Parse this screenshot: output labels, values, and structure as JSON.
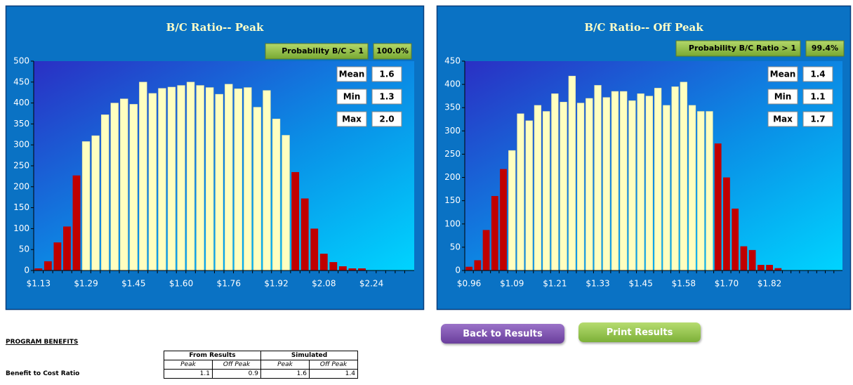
{
  "chart_data": [
    {
      "type": "bar",
      "title": "B/C Ratio-- Peak",
      "probability_label": "Probability B/C > 1",
      "probability_value": "100.0%",
      "stats": [
        {
          "label": "Mean",
          "value": "1.6"
        },
        {
          "label": "Min",
          "value": "1.3"
        },
        {
          "label": "Max",
          "value": "2.0"
        }
      ],
      "categories": [
        "$1.13",
        null,
        null,
        null,
        null,
        "$1.29",
        null,
        null,
        null,
        null,
        "$1.45",
        null,
        null,
        null,
        null,
        "$1.60",
        null,
        null,
        null,
        null,
        "$1.76",
        null,
        null,
        null,
        null,
        "$1.92",
        null,
        null,
        null,
        null,
        "$2.08",
        null,
        null,
        null,
        null,
        "$2.24",
        null,
        null,
        null,
        null
      ],
      "values": [
        5,
        22,
        67,
        105,
        227,
        308,
        322,
        372,
        400,
        410,
        397,
        450,
        423,
        435,
        438,
        442,
        450,
        442,
        437,
        421,
        445,
        434,
        437,
        390,
        430,
        362,
        323,
        235,
        172,
        100,
        40,
        20,
        10,
        5,
        5,
        0,
        0,
        0,
        0,
        0
      ],
      "colors": [
        "#c00000",
        "#c00000",
        "#c00000",
        "#c00000",
        "#c00000",
        "#ffffc0",
        "#ffffc0",
        "#ffffc0",
        "#ffffc0",
        "#ffffc0",
        "#ffffc0",
        "#ffffc0",
        "#ffffc0",
        "#ffffc0",
        "#ffffc0",
        "#ffffc0",
        "#ffffc0",
        "#ffffc0",
        "#ffffc0",
        "#ffffc0",
        "#ffffc0",
        "#ffffc0",
        "#ffffc0",
        "#ffffc0",
        "#ffffc0",
        "#ffffc0",
        "#ffffc0",
        "#c00000",
        "#c00000",
        "#c00000",
        "#c00000",
        "#c00000",
        "#c00000",
        "#c00000",
        "#c00000",
        "#c00000",
        "#c00000",
        "#c00000",
        "#c00000",
        "#c00000"
      ],
      "ylim": [
        0,
        500
      ],
      "yticks": [
        0,
        50,
        100,
        150,
        200,
        250,
        300,
        350,
        400,
        450,
        500
      ]
    },
    {
      "type": "bar",
      "title": "B/C Ratio-- Off Peak",
      "probability_label": "Probability B/C Ratio > 1",
      "probability_value": "99.4%",
      "stats": [
        {
          "label": "Mean",
          "value": "1.4"
        },
        {
          "label": "Min",
          "value": "1.1"
        },
        {
          "label": "Max",
          "value": "1.7"
        }
      ],
      "categories": [
        "$0.96",
        null,
        null,
        null,
        null,
        "$1.09",
        null,
        null,
        null,
        null,
        "$1.21",
        null,
        null,
        null,
        null,
        "$1.33",
        null,
        null,
        null,
        null,
        "$1.45",
        null,
        null,
        null,
        null,
        "$1.58",
        null,
        null,
        null,
        null,
        "$1.70",
        null,
        null,
        null,
        null,
        "$1.82",
        null,
        null,
        null,
        null,
        null,
        null,
        null,
        null
      ],
      "values": [
        8,
        22,
        87,
        160,
        218,
        258,
        337,
        322,
        355,
        342,
        380,
        362,
        418,
        360,
        370,
        398,
        372,
        385,
        385,
        365,
        380,
        375,
        392,
        355,
        395,
        405,
        355,
        342,
        342,
        273,
        200,
        133,
        52,
        44,
        12,
        12,
        5,
        0,
        0,
        0,
        0,
        0,
        0,
        0
      ],
      "colors": [
        "#c00000",
        "#c00000",
        "#c00000",
        "#c00000",
        "#c00000",
        "#ffffc0",
        "#ffffc0",
        "#ffffc0",
        "#ffffc0",
        "#ffffc0",
        "#ffffc0",
        "#ffffc0",
        "#ffffc0",
        "#ffffc0",
        "#ffffc0",
        "#ffffc0",
        "#ffffc0",
        "#ffffc0",
        "#ffffc0",
        "#ffffc0",
        "#ffffc0",
        "#ffffc0",
        "#ffffc0",
        "#ffffc0",
        "#ffffc0",
        "#ffffc0",
        "#ffffc0",
        "#ffffc0",
        "#ffffc0",
        "#c00000",
        "#c00000",
        "#c00000",
        "#c00000",
        "#c00000",
        "#c00000",
        "#c00000",
        "#c00000",
        "#c00000",
        "#c00000",
        "#c00000",
        "#c00000",
        "#c00000",
        "#c00000",
        "#c00000"
      ],
      "ylim": [
        0,
        450
      ],
      "yticks": [
        0,
        50,
        100,
        150,
        200,
        250,
        300,
        350,
        400,
        450
      ]
    }
  ],
  "buttons": [
    "Back to  Results",
    "Print Results"
  ],
  "table": {
    "title": "PROGRAM BENEFITS",
    "groups": [
      "From Results",
      "Simulated"
    ],
    "subheaders": [
      "Peak",
      "Off Peak",
      "Peak",
      "Off Peak"
    ],
    "rows": [
      [
        "Benefit to Cost Ratio",
        "1.1",
        "0.9",
        "1.6",
        "1.4"
      ]
    ]
  }
}
